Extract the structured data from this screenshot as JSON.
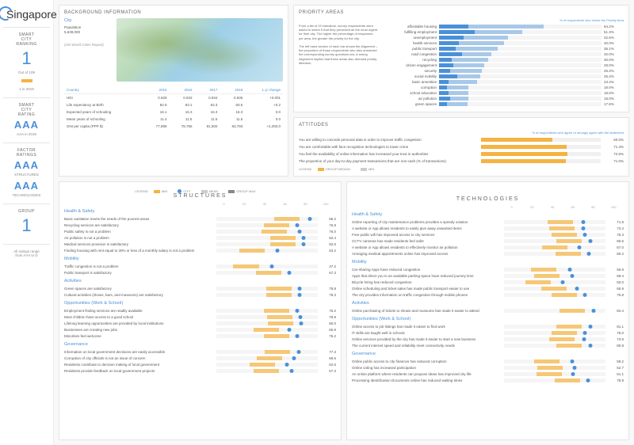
{
  "city_name": "Singapore",
  "sidebar": {
    "ranking_label": "SMART\nCITY\nRANKING",
    "ranking_value": "1",
    "ranking_of": "Out of 109",
    "ranking_prev": "1 in 2019",
    "rating_label": "SMART\nCITY\nRATING",
    "rating_value": "AAA",
    "rating_prev": "AAA in 2019",
    "factor_label": "FACTOR\nRATINGS",
    "structures_value": "AAA",
    "structures_label": "STRUCTURES",
    "tech_value": "AAA",
    "tech_label": "TECHNOLOGIES",
    "group_label": "GROUP",
    "group_value": "1",
    "footnote": "All ratings range\nfrom AAA to D"
  },
  "background": {
    "title": "BACKGROUND INFORMATION",
    "city_heading": "City",
    "population_label": "Population",
    "population_value": "5,638,000",
    "source": "(UN World Cities Report)",
    "table": {
      "cols": [
        "Country",
        "2015",
        "2016",
        "2017",
        "2018",
        "1 yr change"
      ],
      "rows": [
        [
          "HDI",
          "0.929",
          "0.933",
          "0.934",
          "0.935",
          "+0.001"
        ],
        [
          "Life expectancy at Birth",
          "82.9",
          "83.1",
          "83.3",
          "83.5",
          "+0.2"
        ],
        [
          "Expected years of schooling",
          "16.1",
          "16.3",
          "16.3",
          "16.3",
          "0.0"
        ],
        [
          "Mean years of schooling",
          "11.4",
          "11.5",
          "11.5",
          "11.5",
          "0.0"
        ],
        [
          "GNI per capita (PPP $)",
          "77,898",
          "78,756",
          "81,500",
          "83,793",
          "+2,293.0"
        ]
      ]
    }
  },
  "priority": {
    "title": "PRIORITY AREAS",
    "subtitle": "% of respondents who chose the Priority Area",
    "description": "From a list of 15 indicators, survey respondents were asked to select 5 that they perceived as the most urgent for their city. The higher the percentage of responses per area, the greater the priority for the city.\n\nThe left hand section of each bar shows the Alignment – the proportion of those respondents who also answered the corresponding survey questions low. A strong Alignment implies that these areas also demand priority attention.",
    "items": [
      {
        "label": "affordable housing",
        "val": 64.2,
        "align": 18
      },
      {
        "label": "fulfilling employment",
        "val": 51.3,
        "align": 22
      },
      {
        "label": "unemployment",
        "val": 42.6,
        "align": 15
      },
      {
        "label": "health services",
        "val": 40.0,
        "align": 12
      },
      {
        "label": "public transport",
        "val": 36.1,
        "align": 10
      },
      {
        "label": "road congestion",
        "val": 32.0,
        "align": 14
      },
      {
        "label": "recycling",
        "val": 30.0,
        "align": 8
      },
      {
        "label": "citizen engagement",
        "val": 28.0,
        "align": 9
      },
      {
        "label": "security",
        "val": 26.2,
        "align": 7
      },
      {
        "label": "social mobility",
        "val": 25.4,
        "align": 11
      },
      {
        "label": "basic amenities",
        "val": 23.4,
        "align": 6
      },
      {
        "label": "corruption",
        "val": 18.0,
        "align": 5
      },
      {
        "label": "school education",
        "val": 18.0,
        "align": 6
      },
      {
        "label": "air pollution",
        "val": 18.0,
        "align": 7
      },
      {
        "label": "green spaces",
        "val": 17.6,
        "align": 5
      }
    ]
  },
  "attitudes": {
    "title": "ATTITUDES",
    "subtitle": "% of respondents who agree or strongly agree with the statement",
    "items": [
      {
        "label": "You are willing to concede personal data in order to improve traffic congestion",
        "val": 60.0
      },
      {
        "label": "You are comfortable with face recognition technologies to lower crime",
        "val": 71.3
      },
      {
        "label": "You feel the availability of online information has increased your trust in authorities",
        "val": 72.5
      },
      {
        "label": "The proportion of your day-to-day payment transactions that are non-cash (% of transactions)",
        "val": 71.0
      }
    ],
    "legend": [
      "GROUP MEDIAN",
      "MIN"
    ]
  },
  "legend_mid": [
    "MIN",
    "CITY",
    "MEAN",
    "GROUP MAX"
  ],
  "structures": {
    "title": "STRUCTURES",
    "score_label": "Score",
    "ticks": [
      "0",
      "20",
      "40",
      "60",
      "80",
      "100"
    ],
    "cats": [
      {
        "name": "Health & Safety",
        "rows": [
          {
            "label": "Basic sanitation meets the needs of the poorest areas",
            "val": 86.2,
            "city": 82,
            "dot": 92
          },
          {
            "label": "Recycling services are satisfactory",
            "val": 76.8,
            "city": 72,
            "dot": 80
          },
          {
            "label": "Public safety is not a problem",
            "val": 76.0,
            "city": 70,
            "dot": 82
          },
          {
            "label": "Air pollution is not a problem",
            "val": 82.4,
            "city": 78,
            "dot": 86
          },
          {
            "label": "Medical services provision is satisfactory",
            "val": 82.5,
            "city": 78,
            "dot": 86
          },
          {
            "label": "Finding housing with rent equal to 30% or less of a monthly salary is not a problem",
            "val": 53.2,
            "city": 48,
            "dot": 60
          }
        ]
      },
      {
        "name": "Mobility",
        "rows": [
          {
            "label": "Traffic congestion is not a problem",
            "val": 47.2,
            "city": 42,
            "dot": 55
          },
          {
            "label": "Public transport is satisfactory",
            "val": 67.3,
            "city": 64,
            "dot": 72
          }
        ]
      },
      {
        "name": "Activities",
        "rows": [
          {
            "label": "Green spaces are satisfactory",
            "val": 78.8,
            "city": 74,
            "dot": 82
          },
          {
            "label": "Cultural activities (shows, bars, and museums) are satisfactory",
            "val": 78.3,
            "city": 74,
            "dot": 82
          }
        ]
      },
      {
        "name": "Opportunities (Work & School)",
        "rows": [
          {
            "label": "Employment finding services are readily available",
            "val": 76.2,
            "city": 72,
            "dot": 80
          },
          {
            "label": "Most children have access to a good school",
            "val": 78.9,
            "city": 75,
            "dot": 83
          },
          {
            "label": "Lifelong learning opportunities are provided by local institutions",
            "val": 80.0,
            "city": 76,
            "dot": 84
          },
          {
            "label": "Businesses are creating new jobs",
            "val": 65.8,
            "city": 62,
            "dot": 72
          },
          {
            "label": "Minorities feel welcome",
            "val": 76.2,
            "city": 72,
            "dot": 80
          }
        ]
      },
      {
        "name": "Governance",
        "rows": [
          {
            "label": "Information on local government decisions are easily accessible",
            "val": 77.3,
            "city": 73,
            "dot": 81
          },
          {
            "label": "Corruption of city officials is not an issue of concern",
            "val": 69.5,
            "city": 65,
            "dot": 77
          },
          {
            "label": "Residents contribute to decision making of local government",
            "val": 62.6,
            "city": 58,
            "dot": 70
          },
          {
            "label": "Residents provide feedback on local government projects",
            "val": 67.3,
            "city": 62,
            "dot": 74
          }
        ]
      }
    ]
  },
  "technologies": {
    "title": "TECHNOLOGIES",
    "score_label": "Score",
    "ticks": [
      "0",
      "20",
      "40",
      "60",
      "80",
      "100"
    ],
    "cats": [
      {
        "name": "Health & Safety",
        "rows": [
          {
            "label": "Online reporting of city maintenance problems provides a speedy solution",
            "val": 71.8,
            "city": 68,
            "dot": 78
          },
          {
            "label": "A website or App allows residents to easily give away unwanted items",
            "val": 73.4,
            "city": 70,
            "dot": 78
          },
          {
            "label": "Free public wifi has improved access to city services",
            "val": 75.3,
            "city": 72,
            "dot": 80
          },
          {
            "label": "CCTV cameras has made residents feel safer",
            "val": 80.6,
            "city": 77,
            "dot": 85
          },
          {
            "label": "A website or App allows residents to effectively monitor air pollution",
            "val": 67.0,
            "city": 63,
            "dot": 74
          },
          {
            "label": "Arranging medical appointments online has improved access",
            "val": 80.2,
            "city": 76,
            "dot": 84
          }
        ]
      },
      {
        "name": "Mobility",
        "rows": [
          {
            "label": "Car-sharing Apps have reduced congestion",
            "val": 56.8,
            "city": 52,
            "dot": 65
          },
          {
            "label": "Apps that direct you to an available parking space have reduced journey time",
            "val": 59.4,
            "city": 55,
            "dot": 67
          },
          {
            "label": "Bicycle hiring has reduced congestion",
            "val": 50.0,
            "city": 46,
            "dot": 58
          },
          {
            "label": "Online scheduling and ticket sales has made public transport easier to use",
            "val": 65.9,
            "city": 62,
            "dot": 72
          },
          {
            "label": "The city provides information on traffic congestion through mobile phones",
            "val": 75.8,
            "city": 72,
            "dot": 80
          }
        ]
      },
      {
        "name": "Activities",
        "rows": [
          {
            "label": "Online purchasing of tickets to shows and museums has made it easier to attend",
            "val": 84.4,
            "city": 80,
            "dot": 88
          }
        ]
      },
      {
        "name": "Opportunities (Work & School)",
        "rows": [
          {
            "label": "Online access to job listings has made it easier to find work",
            "val": 81.1,
            "city": 77,
            "dot": 85
          },
          {
            "label": "IT skills are taught well in schools",
            "val": 76.0,
            "city": 72,
            "dot": 80
          },
          {
            "label": "Online services provided by the city has made it easier to start a new business",
            "val": 73.9,
            "city": 70,
            "dot": 79
          },
          {
            "label": "The current internet speed and reliability meet connectivity needs",
            "val": 80.8,
            "city": 77,
            "dot": 85
          }
        ]
      },
      {
        "name": "Governance",
        "rows": [
          {
            "label": "Online public access to city finances has reduced corruption",
            "val": 59.2,
            "city": 55,
            "dot": 67
          },
          {
            "label": "Online voting has increased participation",
            "val": 62.7,
            "city": 58,
            "dot": 70
          },
          {
            "label": "An online platform where residents can propose ideas has improved city life",
            "val": 61.1,
            "city": 57,
            "dot": 68
          },
          {
            "label": "Processing Identification Documents online has reduced waiting times",
            "val": 78.9,
            "city": 75,
            "dot": 83
          }
        ]
      }
    ]
  },
  "colors": {
    "accent": "#4a90d9",
    "orange": "#f5b342",
    "light": "#a8c8e8"
  }
}
